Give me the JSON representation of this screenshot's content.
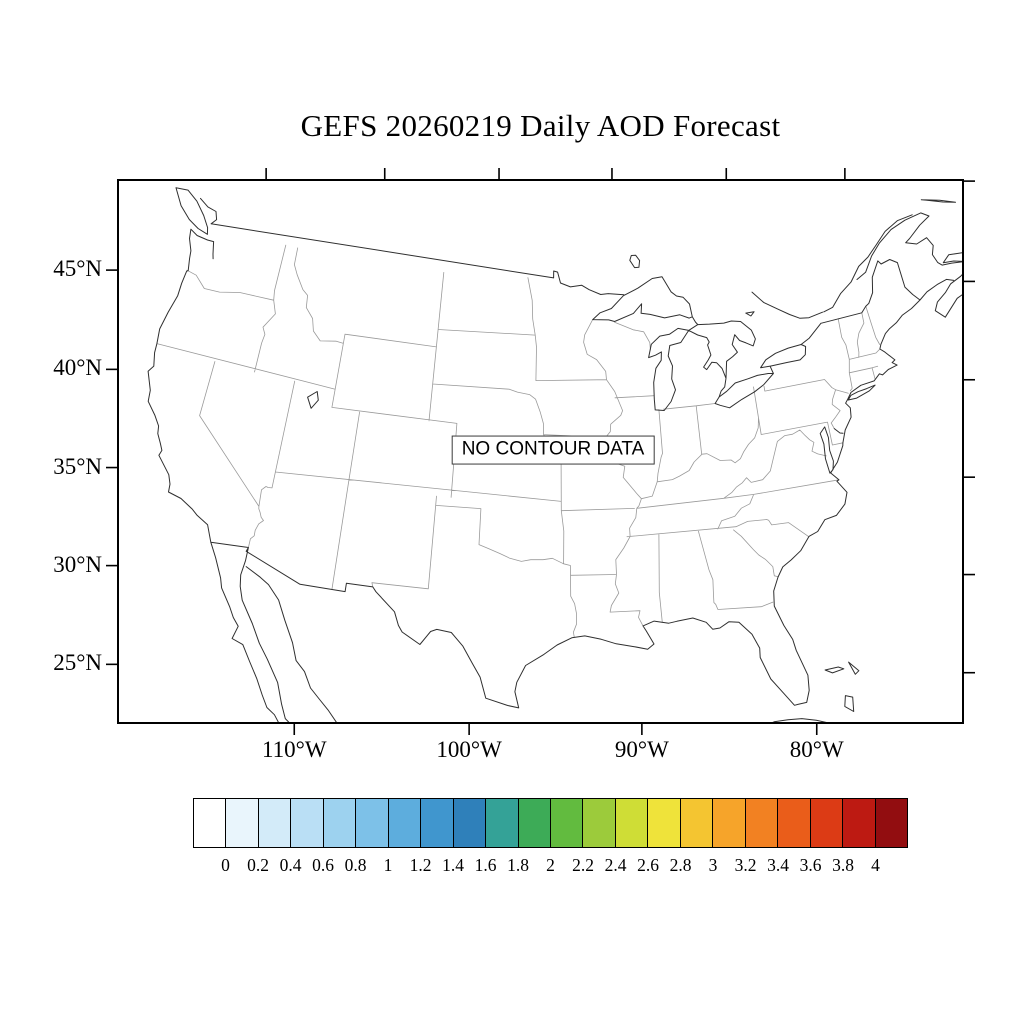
{
  "page": {
    "title": "GEFS 20260219 Daily AOD Forecast"
  },
  "map": {
    "no_data_label": "NO CONTOUR DATA"
  },
  "axes": {
    "lat_ticks": [
      {
        "label": "45°N",
        "lat": 45
      },
      {
        "label": "40°N",
        "lat": 40
      },
      {
        "label": "35°N",
        "lat": 35
      },
      {
        "label": "30°N",
        "lat": 30
      },
      {
        "label": "25°N",
        "lat": 25
      }
    ],
    "lat_ticks_right": [
      25,
      30,
      35,
      40,
      45,
      50
    ],
    "lon_ticks": [
      {
        "label": "110°W",
        "lon": -110
      },
      {
        "label": "100°W",
        "lon": -100
      },
      {
        "label": "90°W",
        "lon": -90
      },
      {
        "label": "80°W",
        "lon": -80
      }
    ],
    "lon_ticks_top": [
      -120,
      -110,
      -100,
      -90,
      -80,
      -70
    ]
  },
  "chart_data": {
    "type": "heatmap",
    "title": "GEFS 20260219 Daily AOD Forecast",
    "model": "GEFS",
    "date": "20260219",
    "variable": "Daily AOD Forecast",
    "status": "NO CONTOUR DATA",
    "values": [],
    "colorbar": {
      "levels": [
        0,
        0.2,
        0.4,
        0.6,
        0.8,
        1,
        1.2,
        1.4,
        1.6,
        1.8,
        2,
        2.2,
        2.4,
        2.6,
        2.8,
        3,
        3.2,
        3.4,
        3.6,
        3.8,
        4
      ],
      "colors": [
        "#ffffff",
        "#e9f5fc",
        "#d3ebf9",
        "#badff5",
        "#9dd2ef",
        "#7dc1e8",
        "#5daddd",
        "#4096ce",
        "#2f80ba",
        "#34a297",
        "#3dab57",
        "#62bb3f",
        "#9ccb3b",
        "#cfdd36",
        "#efe33a",
        "#f4c531",
        "#f6a42a",
        "#f28122",
        "#ea5d1a",
        "#dc3b15",
        "#bd1a12",
        "#920d10"
      ]
    }
  }
}
